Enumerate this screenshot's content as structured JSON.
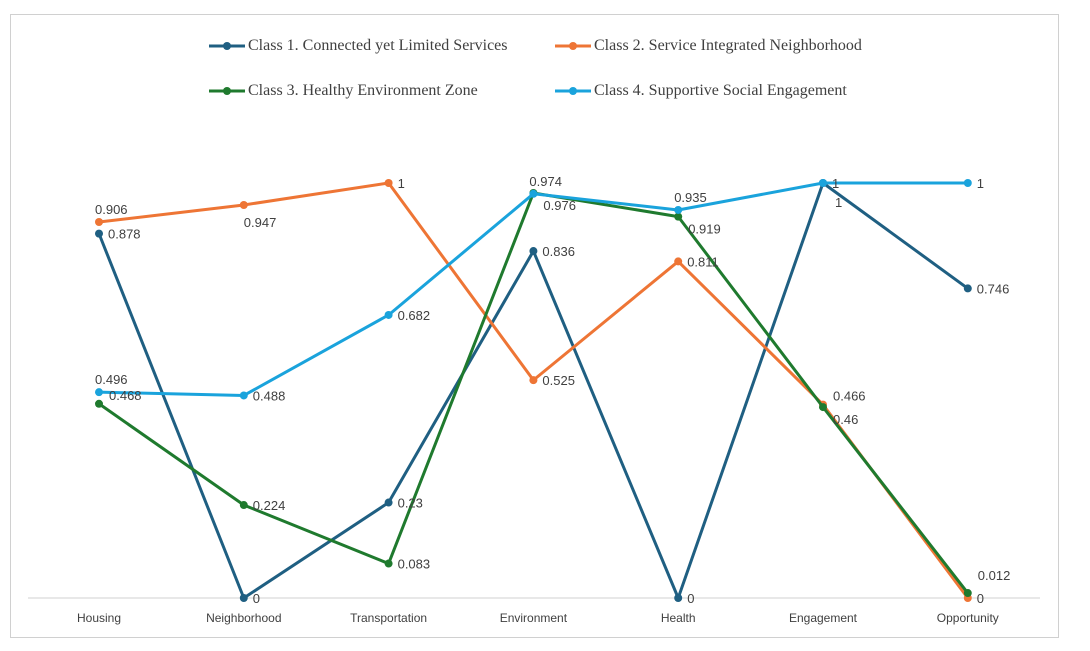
{
  "chart_data": {
    "type": "line",
    "categories": [
      "Housing",
      "Neighborhood",
      "Transportation",
      "Environment",
      "Health",
      "Engagement",
      "Opportunity"
    ],
    "ylim": [
      0,
      1
    ],
    "grid": false,
    "legend_placement": "top",
    "series": [
      {
        "name": "Class 1. Connected yet Limited Services",
        "color": "#1f5f82",
        "values": [
          0.878,
          0,
          0.23,
          0.836,
          0,
          1,
          0.746
        ],
        "labels": [
          "0.878",
          "0",
          "0.23",
          "0.836",
          "0",
          "1",
          "0.746"
        ]
      },
      {
        "name": "Class 2. Service Integrated Neighborhood",
        "color": "#ee7535",
        "values": [
          0.906,
          0.947,
          1,
          0.525,
          0.811,
          0.466,
          0
        ],
        "labels": [
          "0.906",
          "0.947",
          "1",
          "0.525",
          "0.811",
          "0.466",
          "0"
        ]
      },
      {
        "name": "Class 3. Healthy Environment Zone",
        "color": "#1f7a2e",
        "values": [
          0.468,
          0.224,
          0.083,
          0.976,
          0.919,
          0.46,
          0.012
        ],
        "labels": [
          "0.468",
          "0.224",
          "0.083",
          "0.976",
          "0.919",
          "0.46",
          "0.012"
        ]
      },
      {
        "name": "Class 4. Supportive Social Engagement",
        "color": "#1aa3dc",
        "values": [
          0.496,
          0.488,
          0.682,
          0.974,
          0.935,
          1,
          1
        ],
        "labels": [
          "0.496",
          "0.488",
          "0.682",
          "0.974",
          "0.935",
          "1",
          "1"
        ]
      }
    ]
  }
}
